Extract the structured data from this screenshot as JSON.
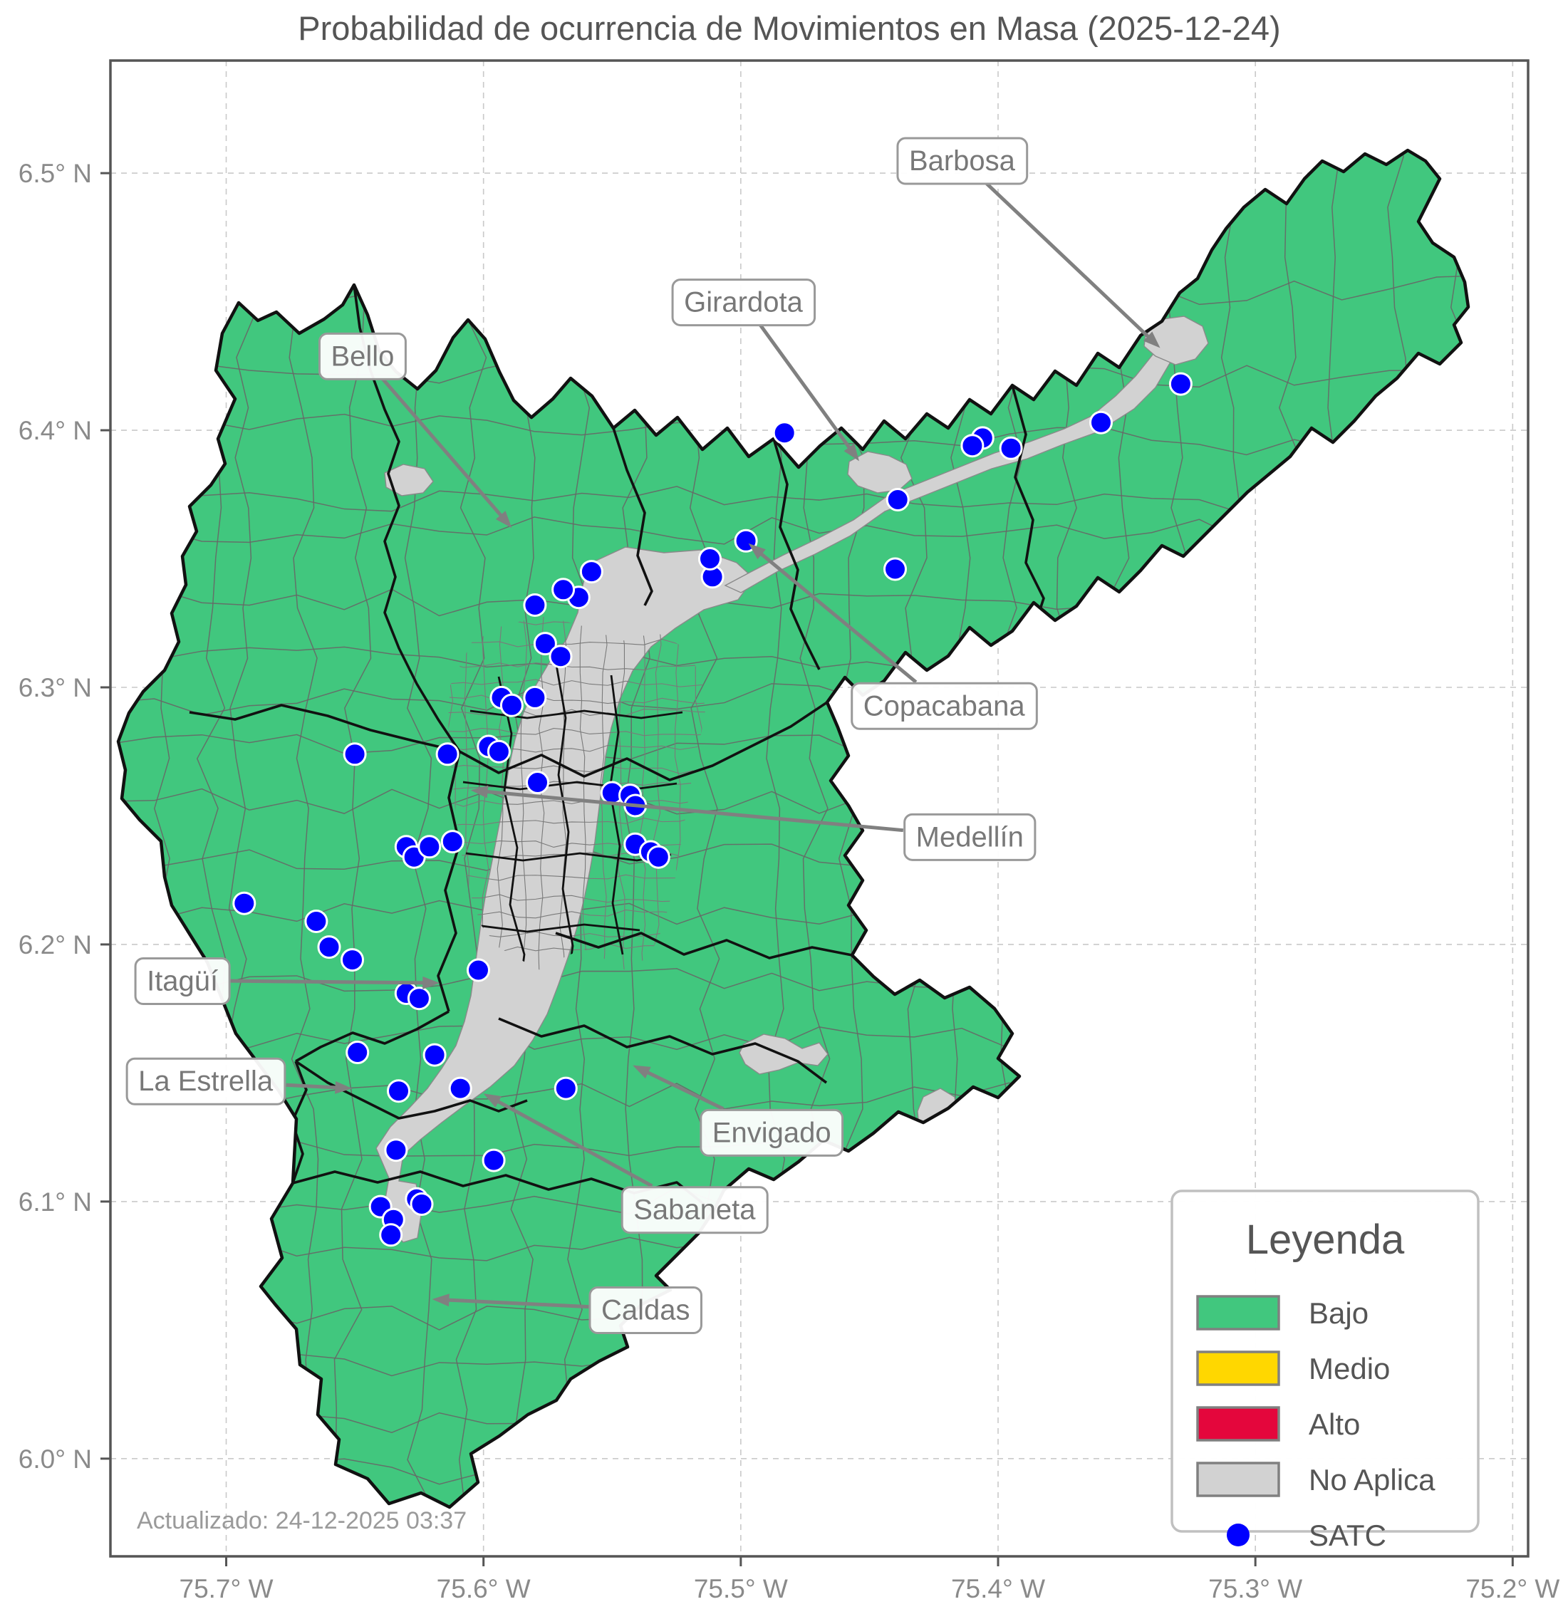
{
  "title": "Probabilidad de ocurrencia de Movimientos en Masa (2025-12-24)",
  "updated": "Actualizado: 24-12-2025 03:37",
  "colors": {
    "bajo": "#41c77e",
    "medio": "#ffd700",
    "alto": "#e4063c",
    "no_aplica": "#d2d2d2",
    "satc": "#0000ff",
    "boundary": "#111111",
    "vereda_line": "#676767",
    "arrow": "#808080",
    "label_text": "#787878",
    "label_box_border": "#999999",
    "axis_text": "#8a8a8a",
    "grid": "#c9c9c9",
    "frame": "#555555",
    "title_text": "#555555",
    "updated_text": "#9a9a9a"
  },
  "axes": {
    "lon_min": -75.745,
    "lon_max": -75.194,
    "lat_min": 5.962,
    "lat_max": 6.5438,
    "lon_ticks": [
      {
        "value": -75.7,
        "label": "75.7° W"
      },
      {
        "value": -75.6,
        "label": "75.6° W"
      },
      {
        "value": -75.5,
        "label": "75.5° W"
      },
      {
        "value": -75.4,
        "label": "75.4° W"
      },
      {
        "value": -75.3,
        "label": "75.3° W"
      },
      {
        "value": -75.2,
        "label": "75.2° W"
      }
    ],
    "lat_ticks": [
      {
        "value": 6.5,
        "label": "6.5° N"
      },
      {
        "value": 6.4,
        "label": "6.4° N"
      },
      {
        "value": 6.3,
        "label": "6.3° N"
      },
      {
        "value": 6.2,
        "label": "6.2° N"
      },
      {
        "value": 6.1,
        "label": "6.1° N"
      },
      {
        "value": 6.0,
        "label": "6.0° N"
      }
    ]
  },
  "legend": {
    "title": "Leyenda",
    "items": [
      {
        "label": "Bajo",
        "type": "patch",
        "color_key": "bajo"
      },
      {
        "label": "Medio",
        "type": "patch",
        "color_key": "medio"
      },
      {
        "label": "Alto",
        "type": "patch",
        "color_key": "alto"
      },
      {
        "label": "No Aplica",
        "type": "patch",
        "color_key": "no_aplica"
      },
      {
        "label": "SATC",
        "type": "marker",
        "color_key": "satc"
      }
    ]
  },
  "city_labels": [
    {
      "name": "Barbosa",
      "lon": -75.414,
      "lat": 6.505,
      "tip_lon": -75.337,
      "tip_lat": 6.432
    },
    {
      "name": "Girardota",
      "lon": -75.499,
      "lat": 6.45,
      "tip_lon": -75.454,
      "tip_lat": 6.388
    },
    {
      "name": "Bello",
      "lon": -75.647,
      "lat": 6.429,
      "tip_lon": -75.589,
      "tip_lat": 6.362
    },
    {
      "name": "Copacabana",
      "lon": -75.421,
      "lat": 6.293,
      "tip_lon": -75.497,
      "tip_lat": 6.356
    },
    {
      "name": "Medellín",
      "lon": -75.411,
      "lat": 6.242,
      "tip_lon": -75.605,
      "tip_lat": 6.26
    },
    {
      "name": "Itagüí",
      "lon": -75.717,
      "lat": 6.186,
      "tip_lon": -75.617,
      "tip_lat": 6.185
    },
    {
      "name": "La Estrella",
      "lon": -75.708,
      "lat": 6.147,
      "tip_lon": -75.651,
      "tip_lat": 6.144
    },
    {
      "name": "Envigado",
      "lon": -75.488,
      "lat": 6.127,
      "tip_lon": -75.542,
      "tip_lat": 6.153
    },
    {
      "name": "Sabaneta",
      "lon": -75.518,
      "lat": 6.097,
      "tip_lon": -75.6,
      "tip_lat": 6.142
    },
    {
      "name": "Caldas",
      "lon": -75.537,
      "lat": 6.058,
      "tip_lon": -75.62,
      "tip_lat": 6.062
    }
  ],
  "satc_points": [
    [
      -75.329,
      6.418
    ],
    [
      -75.36,
      6.403
    ],
    [
      -75.395,
      6.393
    ],
    [
      -75.406,
      6.397
    ],
    [
      -75.41,
      6.394
    ],
    [
      -75.439,
      6.373
    ],
    [
      -75.44,
      6.346
    ],
    [
      -75.483,
      6.399
    ],
    [
      -75.498,
      6.357
    ],
    [
      -75.511,
      6.343
    ],
    [
      -75.512,
      6.35
    ],
    [
      -75.558,
      6.345
    ],
    [
      -75.563,
      6.335
    ],
    [
      -75.569,
      6.338
    ],
    [
      -75.58,
      6.332
    ],
    [
      -75.576,
      6.317
    ],
    [
      -75.57,
      6.312
    ],
    [
      -75.593,
      6.296
    ],
    [
      -75.589,
      6.293
    ],
    [
      -75.58,
      6.296
    ],
    [
      -75.65,
      6.274
    ],
    [
      -75.614,
      6.274
    ],
    [
      -75.598,
      6.277
    ],
    [
      -75.594,
      6.275
    ],
    [
      -75.579,
      6.263
    ],
    [
      -75.55,
      6.259
    ],
    [
      -75.543,
      6.258
    ],
    [
      -75.541,
      6.254
    ],
    [
      -75.63,
      6.238
    ],
    [
      -75.627,
      6.234
    ],
    [
      -75.621,
      6.238
    ],
    [
      -75.612,
      6.24
    ],
    [
      -75.541,
      6.239
    ],
    [
      -75.535,
      6.236
    ],
    [
      -75.532,
      6.234
    ],
    [
      -75.693,
      6.216
    ],
    [
      -75.665,
      6.209
    ],
    [
      -75.66,
      6.199
    ],
    [
      -75.651,
      6.194
    ],
    [
      -75.602,
      6.19
    ],
    [
      -75.63,
      6.181
    ],
    [
      -75.625,
      6.179
    ],
    [
      -75.649,
      6.158
    ],
    [
      -75.619,
      6.157
    ],
    [
      -75.633,
      6.143
    ],
    [
      -75.609,
      6.144
    ],
    [
      -75.568,
      6.144
    ],
    [
      -75.634,
      6.12
    ],
    [
      -75.596,
      6.116
    ],
    [
      -75.64,
      6.098
    ],
    [
      -75.626,
      6.101
    ],
    [
      -75.624,
      6.099
    ],
    [
      -75.635,
      6.093
    ],
    [
      -75.636,
      6.087
    ]
  ]
}
